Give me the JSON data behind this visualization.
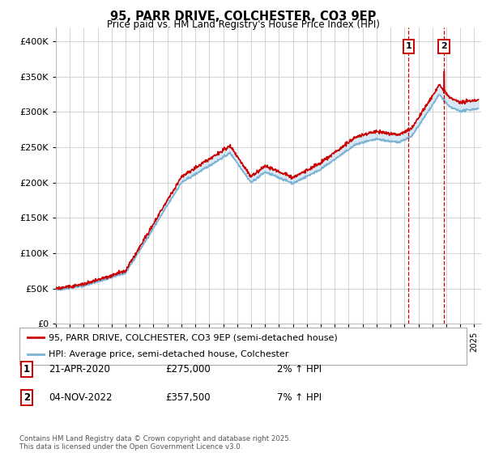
{
  "title": "95, PARR DRIVE, COLCHESTER, CO3 9EP",
  "subtitle": "Price paid vs. HM Land Registry's House Price Index (HPI)",
  "xlim_start": 1995.0,
  "xlim_end": 2025.5,
  "ylim": [
    0,
    420000
  ],
  "yticks": [
    0,
    50000,
    100000,
    150000,
    200000,
    250000,
    300000,
    350000,
    400000
  ],
  "ytick_labels": [
    "£0",
    "£50K",
    "£100K",
    "£150K",
    "£200K",
    "£250K",
    "£300K",
    "£350K",
    "£400K"
  ],
  "sale1_date": 2020.3,
  "sale1_price": 275000,
  "sale2_date": 2022.84,
  "sale2_price": 357500,
  "hpi_color": "#7ab3d4",
  "price_color": "#cc0000",
  "fill_color": "#c8dff0",
  "annotation_box_color": "#cc0000",
  "background_color": "#ffffff",
  "grid_color": "#cccccc",
  "legend_label_red": "95, PARR DRIVE, COLCHESTER, CO3 9EP (semi-detached house)",
  "legend_label_blue": "HPI: Average price, semi-detached house, Colchester",
  "note1_label": "1",
  "note1_date": "21-APR-2020",
  "note1_price": "£275,000",
  "note1_change": "2% ↑ HPI",
  "note2_label": "2",
  "note2_date": "04-NOV-2022",
  "note2_price": "£357,500",
  "note2_change": "7% ↑ HPI",
  "footer": "Contains HM Land Registry data © Crown copyright and database right 2025.\nThis data is licensed under the Open Government Licence v3.0."
}
